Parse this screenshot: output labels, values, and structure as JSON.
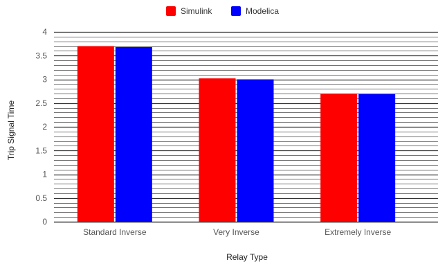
{
  "chart_data": {
    "type": "bar",
    "title": "",
    "xlabel": "Relay Type",
    "ylabel": "Trip Signal Time",
    "categories": [
      "Standard Inverse",
      "Very Inverse",
      "Extremely Inverse"
    ],
    "series": [
      {
        "name": "Simulink",
        "color": "#ff0000",
        "values": [
          3.7,
          3.02,
          2.7
        ]
      },
      {
        "name": "Modelica",
        "color": "#0000ff",
        "values": [
          3.68,
          3.0,
          2.69
        ]
      }
    ],
    "ylim": [
      0,
      4
    ],
    "yticks": [
      "0",
      "0.5",
      "1",
      "1.5",
      "2",
      "2.5",
      "3",
      "3.5",
      "4"
    ],
    "grid": true,
    "legend_position": "top"
  }
}
